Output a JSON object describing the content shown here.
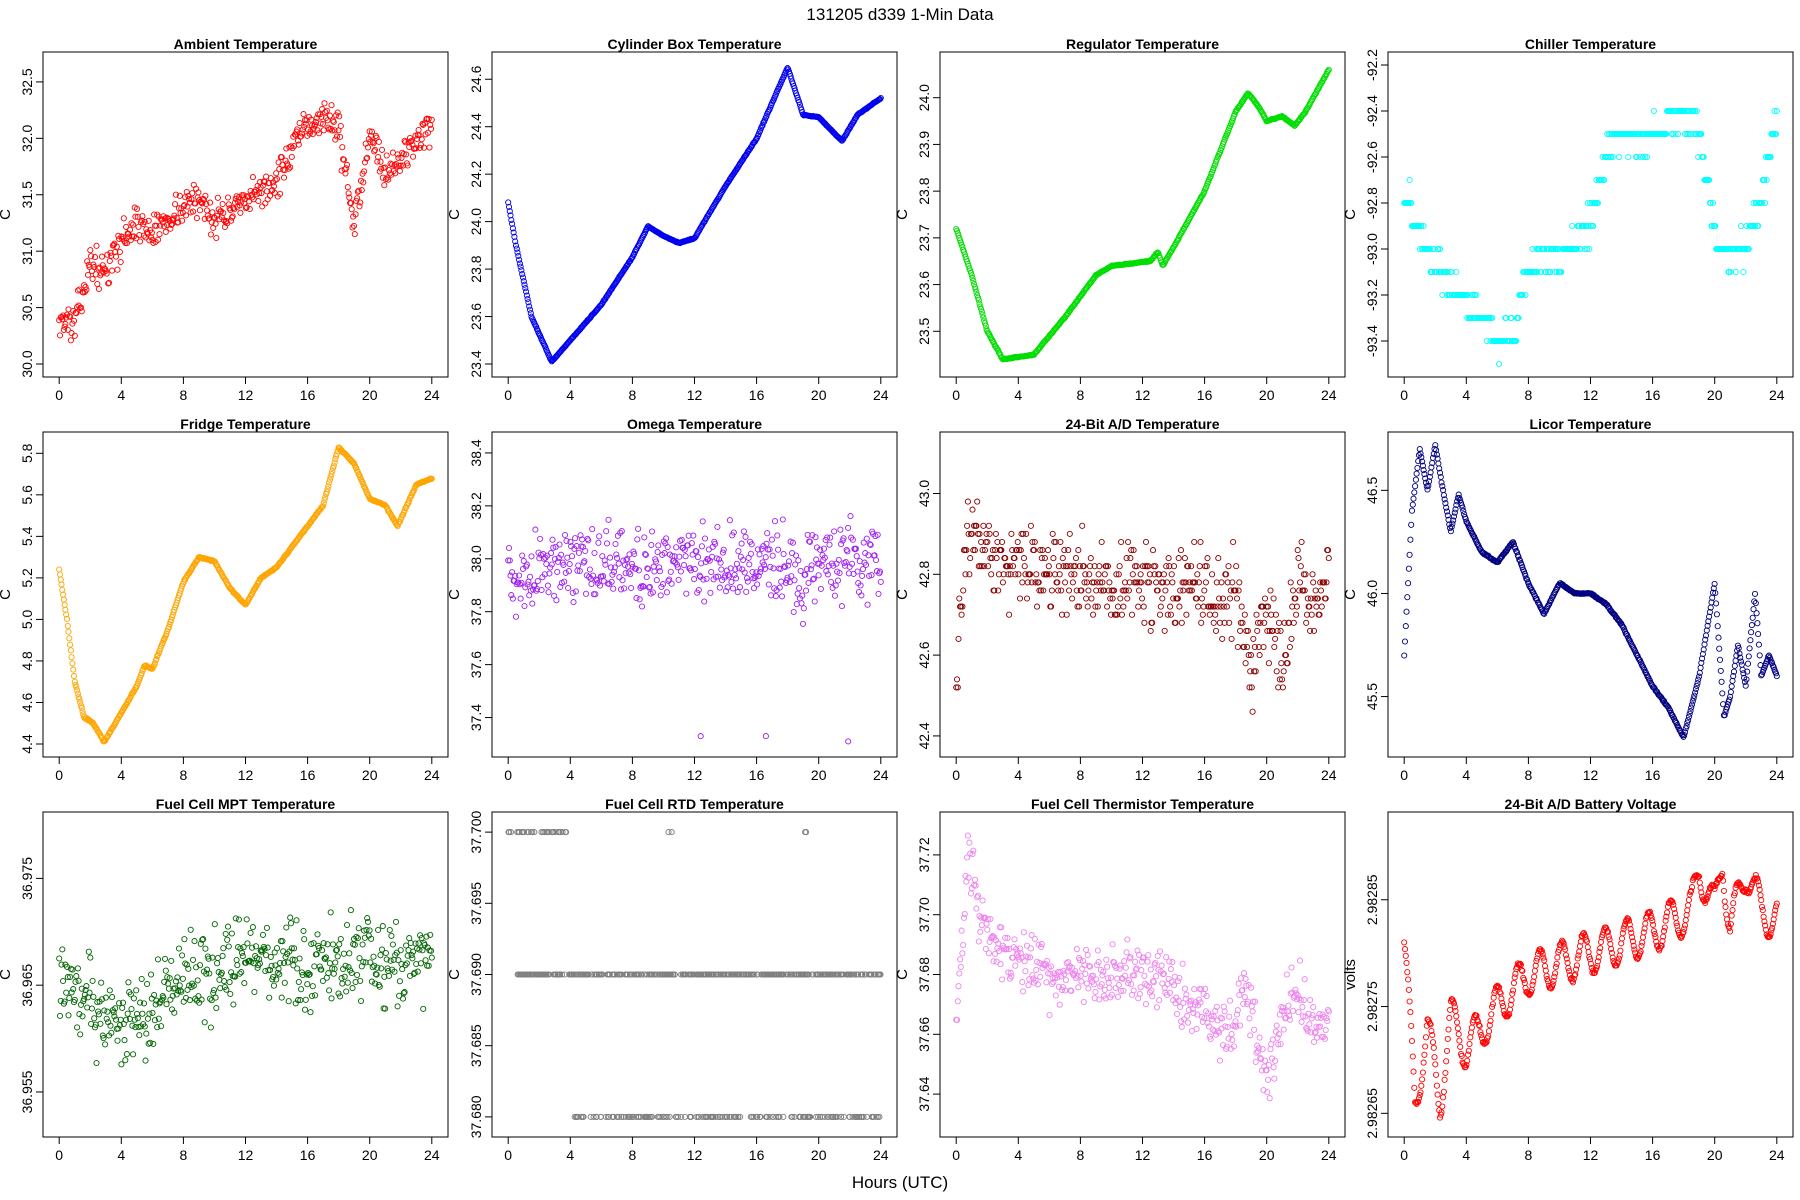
{
  "page_title": "131205   d339   1-Min Data",
  "x_axis_label": "Hours (UTC)",
  "chart_data": [
    {
      "type": "scatter",
      "title": "Ambient Temperature",
      "ylabel": "C",
      "color": "#ff0000",
      "xlim": [
        0,
        24
      ],
      "xticks": [
        0,
        4,
        8,
        12,
        16,
        20,
        24
      ],
      "ylim": [
        30.0,
        32.65
      ],
      "yticks": [
        30.0,
        30.5,
        31.0,
        31.5,
        32.0,
        32.5
      ],
      "ytick_labels": [
        "30.0",
        "30.5",
        "31.0",
        "31.5",
        "32.0",
        "32.5"
      ],
      "profile": [
        [
          0,
          30.4
        ],
        [
          1,
          30.35
        ],
        [
          2,
          30.9
        ],
        [
          3,
          30.8
        ],
        [
          4,
          31.1
        ],
        [
          5,
          31.25
        ],
        [
          6,
          31.15
        ],
        [
          7,
          31.3
        ],
        [
          8,
          31.4
        ],
        [
          9,
          31.45
        ],
        [
          10,
          31.3
        ],
        [
          11,
          31.35
        ],
        [
          12,
          31.4
        ],
        [
          13,
          31.55
        ],
        [
          14,
          31.6
        ],
        [
          15,
          31.9
        ],
        [
          16,
          32.1
        ],
        [
          17,
          32.2
        ],
        [
          18,
          32.1
        ],
        [
          19,
          31.2
        ],
        [
          20,
          32.1
        ],
        [
          21,
          31.7
        ],
        [
          22,
          31.8
        ],
        [
          23,
          32.0
        ],
        [
          24,
          32.1
        ]
      ],
      "noise": 0.45,
      "outliers": []
    },
    {
      "type": "scatter",
      "title": "Cylinder Box Temperature",
      "ylabel": "C",
      "color": "#0000ee",
      "xlim": [
        0,
        24
      ],
      "xticks": [
        0,
        4,
        8,
        12,
        16,
        20,
        24
      ],
      "ylim": [
        23.4,
        24.66
      ],
      "yticks": [
        23.4,
        23.6,
        23.8,
        24.0,
        24.2,
        24.4,
        24.6
      ],
      "ytick_labels": [
        "23.4",
        "23.6",
        "23.8",
        "24.0",
        "24.2",
        "24.4",
        "24.6"
      ],
      "profile": [
        [
          0,
          24.08
        ],
        [
          0.5,
          23.9
        ],
        [
          1.5,
          23.6
        ],
        [
          2.8,
          23.41
        ],
        [
          4,
          23.5
        ],
        [
          6,
          23.65
        ],
        [
          8,
          23.85
        ],
        [
          9,
          23.98
        ],
        [
          10,
          23.94
        ],
        [
          11,
          23.91
        ],
        [
          12,
          23.93
        ],
        [
          14,
          24.15
        ],
        [
          16,
          24.35
        ],
        [
          18,
          24.65
        ],
        [
          19,
          24.45
        ],
        [
          20,
          24.44
        ],
        [
          21.5,
          24.34
        ],
        [
          22.5,
          24.45
        ],
        [
          24,
          24.52
        ]
      ],
      "noise": 0.005,
      "outliers": []
    },
    {
      "type": "scatter",
      "title": "Regulator Temperature",
      "ylabel": "C",
      "color": "#00dd00",
      "xlim": [
        0,
        24
      ],
      "xticks": [
        0,
        4,
        8,
        12,
        16,
        20,
        24
      ],
      "ylim": [
        23.43,
        24.07
      ],
      "yticks": [
        23.5,
        23.6,
        23.7,
        23.8,
        23.9,
        24.0
      ],
      "ytick_labels": [
        "23.5",
        "23.6",
        "23.7",
        "23.8",
        "23.9",
        "24.0"
      ],
      "profile": [
        [
          0,
          23.72
        ],
        [
          1,
          23.62
        ],
        [
          2,
          23.5
        ],
        [
          3,
          23.44
        ],
        [
          5,
          23.45
        ],
        [
          7,
          23.53
        ],
        [
          9,
          23.62
        ],
        [
          10,
          23.64
        ],
        [
          12.5,
          23.65
        ],
        [
          13,
          23.67
        ],
        [
          13.3,
          23.64
        ],
        [
          14,
          23.68
        ],
        [
          16,
          23.8
        ],
        [
          18,
          23.97
        ],
        [
          18.8,
          24.01
        ],
        [
          19.5,
          23.98
        ],
        [
          20,
          23.95
        ],
        [
          21,
          23.96
        ],
        [
          21.8,
          23.94
        ],
        [
          22.5,
          23.97
        ],
        [
          24,
          24.06
        ]
      ],
      "noise": 0.003,
      "outliers": []
    },
    {
      "type": "scatter",
      "title": "Chiller Temperature",
      "ylabel": "C",
      "color": "#00ffff",
      "xlim": [
        0,
        24
      ],
      "xticks": [
        0,
        4,
        8,
        12,
        16,
        20,
        24
      ],
      "ylim": [
        -93.5,
        -92.2
      ],
      "yticks": [
        -93.4,
        -93.2,
        -93.0,
        -92.8,
        -92.6,
        -92.4,
        -92.2
      ],
      "ytick_labels": [
        "-93.4",
        "-93.2",
        "-93.0",
        "-92.8",
        "-92.6",
        "-92.4",
        "-92.2"
      ],
      "profile": [
        [
          0,
          -92.75
        ],
        [
          1,
          -92.95
        ],
        [
          2,
          -93.05
        ],
        [
          3,
          -93.15
        ],
        [
          4,
          -93.25
        ],
        [
          5,
          -93.3
        ],
        [
          6,
          -93.4
        ],
        [
          7,
          -93.35
        ],
        [
          8,
          -93.1
        ],
        [
          9,
          -93.0
        ],
        [
          10,
          -93.05
        ],
        [
          11,
          -92.95
        ],
        [
          12,
          -92.9
        ],
        [
          13,
          -92.55
        ],
        [
          14,
          -92.5
        ],
        [
          15,
          -92.55
        ],
        [
          16,
          -92.5
        ],
        [
          17,
          -92.45
        ],
        [
          18,
          -92.4
        ],
        [
          19,
          -92.5
        ],
        [
          20,
          -92.95
        ],
        [
          21,
          -93.05
        ],
        [
          22,
          -93.0
        ],
        [
          23,
          -92.8
        ],
        [
          24,
          -92.4
        ]
      ],
      "noise": 0.2,
      "quantum": 0.1,
      "outliers": []
    },
    {
      "type": "scatter",
      "title": "Fridge Temperature",
      "ylabel": "C",
      "color": "#ffa500",
      "xlim": [
        0,
        24
      ],
      "xticks": [
        0,
        4,
        8,
        12,
        16,
        20,
        24
      ],
      "ylim": [
        4.4,
        5.84
      ],
      "yticks": [
        4.4,
        4.6,
        4.8,
        5.0,
        5.2,
        5.4,
        5.6,
        5.8
      ],
      "ytick_labels": [
        "4.4",
        "4.6",
        "4.8",
        "5.0",
        "5.2",
        "5.4",
        "5.6",
        "5.8"
      ],
      "profile": [
        [
          0,
          5.24
        ],
        [
          0.5,
          5.0
        ],
        [
          1,
          4.7
        ],
        [
          1.6,
          4.53
        ],
        [
          2.2,
          4.5
        ],
        [
          2.9,
          4.41
        ],
        [
          4,
          4.55
        ],
        [
          5,
          4.68
        ],
        [
          5.5,
          4.78
        ],
        [
          6,
          4.76
        ],
        [
          7,
          4.95
        ],
        [
          8,
          5.18
        ],
        [
          9,
          5.3
        ],
        [
          10,
          5.28
        ],
        [
          11,
          5.15
        ],
        [
          12,
          5.07
        ],
        [
          13,
          5.2
        ],
        [
          14,
          5.25
        ],
        [
          15,
          5.35
        ],
        [
          16,
          5.45
        ],
        [
          17,
          5.55
        ],
        [
          18,
          5.83
        ],
        [
          19,
          5.75
        ],
        [
          20,
          5.58
        ],
        [
          21,
          5.55
        ],
        [
          21.8,
          5.45
        ],
        [
          23,
          5.65
        ],
        [
          24,
          5.68
        ]
      ],
      "noise": 0.01,
      "outliers": []
    },
    {
      "type": "scatter",
      "title": "Omega Temperature",
      "ylabel": "C",
      "color": "#a020f0",
      "xlim": [
        0,
        24
      ],
      "xticks": [
        0,
        4,
        8,
        12,
        16,
        20,
        24
      ],
      "ylim": [
        37.3,
        38.43
      ],
      "yticks": [
        37.4,
        37.6,
        37.8,
        38.0,
        38.2,
        38.4
      ],
      "ytick_labels": [
        "37.4",
        "37.6",
        "37.8",
        "38.0",
        "38.2",
        "38.4"
      ],
      "profile": [
        [
          0,
          37.9
        ],
        [
          3,
          37.98
        ],
        [
          6,
          37.98
        ],
        [
          9,
          37.97
        ],
        [
          12,
          38.0
        ],
        [
          15,
          37.98
        ],
        [
          18,
          37.98
        ],
        [
          19,
          37.9
        ],
        [
          20,
          38.0
        ],
        [
          22,
          38.0
        ],
        [
          24,
          38.0
        ]
      ],
      "noise": 0.4,
      "outliers": [
        [
          12.4,
          37.33
        ],
        [
          16.6,
          37.33
        ],
        [
          21.9,
          37.31
        ]
      ]
    },
    {
      "type": "scatter",
      "title": "24-Bit A/D Temperature",
      "ylabel": "C",
      "color": "#8b0000",
      "xlim": [
        0,
        24
      ],
      "xticks": [
        0,
        4,
        8,
        12,
        16,
        20,
        24
      ],
      "ylim": [
        42.38,
        43.12
      ],
      "yticks": [
        42.4,
        42.6,
        42.8,
        43.0
      ],
      "ytick_labels": [
        "42.4",
        "42.6",
        "42.8",
        "43.0"
      ],
      "profile": [
        [
          0,
          42.5
        ],
        [
          0.5,
          42.85
        ],
        [
          1,
          42.9
        ],
        [
          2,
          42.85
        ],
        [
          4,
          42.82
        ],
        [
          6,
          42.8
        ],
        [
          8,
          42.78
        ],
        [
          12,
          42.78
        ],
        [
          16,
          42.76
        ],
        [
          18,
          42.75
        ],
        [
          19,
          42.55
        ],
        [
          20,
          42.7
        ],
        [
          21,
          42.6
        ],
        [
          22,
          42.8
        ],
        [
          23,
          42.7
        ],
        [
          24,
          42.78
        ]
      ],
      "noise": 0.3,
      "quantum": 0.02,
      "outliers": []
    },
    {
      "type": "scatter",
      "title": "Licor Temperature",
      "ylabel": "C",
      "color": "#000080",
      "xlim": [
        0,
        24
      ],
      "xticks": [
        0,
        4,
        8,
        12,
        16,
        20,
        24
      ],
      "ylim": [
        45.27,
        46.72
      ],
      "yticks": [
        45.5,
        46.0,
        46.5
      ],
      "ytick_labels": [
        "45.5",
        "46.0",
        "46.5"
      ],
      "profile": [
        [
          0,
          45.7
        ],
        [
          0.5,
          46.4
        ],
        [
          1,
          46.7
        ],
        [
          1.5,
          46.5
        ],
        [
          2,
          46.72
        ],
        [
          2.5,
          46.5
        ],
        [
          3,
          46.3
        ],
        [
          3.5,
          46.48
        ],
        [
          4,
          46.35
        ],
        [
          5,
          46.2
        ],
        [
          6,
          46.15
        ],
        [
          7,
          46.25
        ],
        [
          8,
          46.05
        ],
        [
          9,
          45.9
        ],
        [
          10,
          46.05
        ],
        [
          11,
          46.0
        ],
        [
          12,
          46.0
        ],
        [
          13,
          45.95
        ],
        [
          14,
          45.85
        ],
        [
          15,
          45.7
        ],
        [
          16,
          45.55
        ],
        [
          17,
          45.45
        ],
        [
          18,
          45.3
        ],
        [
          19,
          45.6
        ],
        [
          20,
          46.05
        ],
        [
          20.6,
          45.4
        ],
        [
          21,
          45.5
        ],
        [
          21.5,
          45.75
        ],
        [
          22,
          45.55
        ],
        [
          22.6,
          46.0
        ],
        [
          23,
          45.6
        ],
        [
          23.5,
          45.7
        ],
        [
          24,
          45.6
        ]
      ],
      "noise": 0.01,
      "outliers": []
    },
    {
      "type": "scatter",
      "title": "Fuel Cell MPT Temperature",
      "ylabel": "C",
      "color": "#006400",
      "xlim": [
        0,
        24
      ],
      "xticks": [
        0,
        4,
        8,
        12,
        16,
        20,
        24
      ],
      "ylim": [
        36.952,
        36.98
      ],
      "yticks": [
        36.955,
        36.965,
        36.975
      ],
      "ytick_labels": [
        "36.955",
        "36.965",
        "36.975"
      ],
      "profile": [
        [
          0,
          36.966
        ],
        [
          2,
          36.963
        ],
        [
          4,
          36.962
        ],
        [
          6,
          36.963
        ],
        [
          8,
          36.966
        ],
        [
          12,
          36.967
        ],
        [
          16,
          36.967
        ],
        [
          20,
          36.967
        ],
        [
          24,
          36.968
        ]
      ],
      "noise": 0.012,
      "outliers": []
    },
    {
      "type": "scatter",
      "title": "Fuel Cell RTD Temperature",
      "ylabel": "C",
      "color": "#808080",
      "xlim": [
        0,
        24
      ],
      "xticks": [
        0,
        4,
        8,
        12,
        16,
        20,
        24
      ],
      "ylim": [
        37.6795,
        37.7005
      ],
      "yticks": [
        37.68,
        37.685,
        37.69,
        37.695,
        37.7
      ],
      "ytick_labels": [
        "37.680",
        "37.685",
        "37.690",
        "37.695",
        "37.700"
      ],
      "profile": [
        [
          0,
          37.69
        ],
        [
          24,
          37.69
        ]
      ],
      "noise": 0,
      "quantum": 0.01,
      "outliers": [],
      "levels": [
        {
          "y": 37.7,
          "segments": [
            [
              0,
              3.8
            ],
            [
              10.3,
              10.6
            ],
            [
              19.1,
              19.3
            ]
          ],
          "density": 0.4
        },
        {
          "y": 37.69,
          "segments": [
            [
              0.6,
              24
            ]
          ],
          "density": 1.0
        },
        {
          "y": 37.68,
          "segments": [
            [
              4.2,
              24
            ]
          ],
          "density": 0.45
        }
      ]
    },
    {
      "type": "scatter",
      "title": "Fuel Cell Thermistor Temperature",
      "ylabel": "C",
      "color": "#ee82ee",
      "xlim": [
        0,
        24
      ],
      "xticks": [
        0,
        4,
        8,
        12,
        16,
        20,
        24
      ],
      "ylim": [
        37.63,
        37.73
      ],
      "yticks": [
        37.64,
        37.66,
        37.68,
        37.7,
        37.72
      ],
      "ytick_labels": [
        "37.64",
        "37.66",
        "37.68",
        "37.70",
        "37.72"
      ],
      "profile": [
        [
          0,
          37.66
        ],
        [
          0.7,
          37.72
        ],
        [
          1.5,
          37.7
        ],
        [
          2.5,
          37.69
        ],
        [
          4,
          37.685
        ],
        [
          6,
          37.68
        ],
        [
          8,
          37.68
        ],
        [
          10,
          37.68
        ],
        [
          12,
          37.68
        ],
        [
          14,
          37.675
        ],
        [
          16,
          37.665
        ],
        [
          18,
          37.66
        ],
        [
          18.5,
          37.68
        ],
        [
          20,
          37.645
        ],
        [
          21,
          37.665
        ],
        [
          22,
          37.675
        ],
        [
          23,
          37.66
        ],
        [
          24,
          37.665
        ]
      ],
      "noise": 0.03,
      "outliers": []
    },
    {
      "type": "scatter",
      "title": "24-Bit A/D Battery Voltage",
      "ylabel": "volts",
      "color": "#ff0000",
      "xlim": [
        0,
        24
      ],
      "xticks": [
        0,
        4,
        8,
        12,
        16,
        20,
        24
      ],
      "ylim": [
        2.98264,
        2.98292
      ],
      "yticks": [
        2.98265,
        2.98275,
        2.98285
      ],
      "ytick_labels": [
        "2.98265",
        "2.98275",
        "2.98285"
      ],
      "profile": [
        [
          0,
          2.98281
        ],
        [
          0.7,
          2.98266
        ],
        [
          1.5,
          2.98273
        ],
        [
          2.3,
          2.98266
        ],
        [
          3,
          2.98274
        ],
        [
          4,
          2.98271
        ],
        [
          6,
          2.98275
        ],
        [
          8,
          2.98278
        ],
        [
          12,
          2.9828
        ],
        [
          16,
          2.98282
        ],
        [
          18.5,
          2.98284
        ],
        [
          19,
          2.98288
        ],
        [
          20,
          2.98284
        ],
        [
          20.5,
          2.98289
        ],
        [
          21,
          2.98282
        ],
        [
          22,
          2.98288
        ],
        [
          23,
          2.98284
        ],
        [
          24,
          2.98283
        ]
      ],
      "noise": 5e-06,
      "oscillation": 2e-05,
      "outliers": []
    }
  ]
}
